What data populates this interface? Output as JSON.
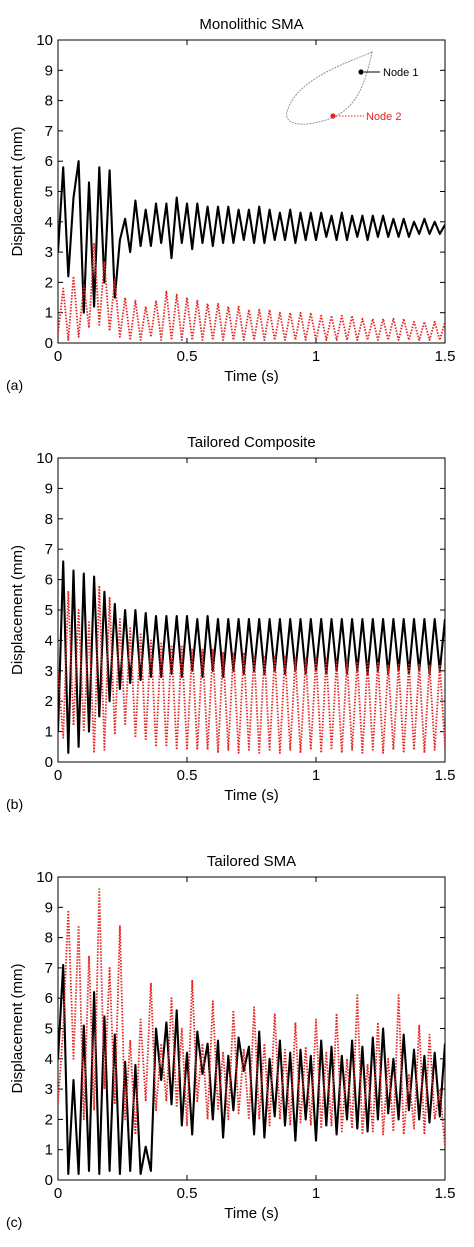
{
  "figure": {
    "colors": {
      "node1": "#000000",
      "node2": "#e8231f",
      "inset": "#888888"
    }
  },
  "chart_data": [
    {
      "type": "line",
      "panel_label": "(a)",
      "title": "Monolithic SMA",
      "xlabel": "Time (s)",
      "ylabel": "Displacement (mm)",
      "xlim": [
        0,
        1.5
      ],
      "ylim": [
        0,
        10
      ],
      "xticks": [
        "0",
        "0.5",
        "1",
        "1.5"
      ],
      "yticks": [
        "0",
        "1",
        "2",
        "3",
        "4",
        "5",
        "6",
        "7",
        "8",
        "9",
        "10"
      ],
      "legend": {
        "placement": "top-right",
        "entries": [
          "Node 1",
          "Node 2"
        ]
      },
      "series": [
        {
          "name": "Node 1",
          "color": "#000000",
          "style": "solid",
          "x": [
            0,
            0.02,
            0.04,
            0.06,
            0.08,
            0.1,
            0.12,
            0.14,
            0.16,
            0.18,
            0.2,
            0.22,
            0.24,
            0.26,
            0.28,
            0.3,
            0.32,
            0.34,
            0.36,
            0.38,
            0.4,
            0.42,
            0.44,
            0.46,
            0.48,
            0.5,
            0.52,
            0.54,
            0.56,
            0.58,
            0.6,
            0.62,
            0.64,
            0.66,
            0.68,
            0.7,
            0.72,
            0.74,
            0.76,
            0.78,
            0.8,
            0.82,
            0.84,
            0.86,
            0.88,
            0.9,
            0.92,
            0.94,
            0.96,
            0.98,
            1.0,
            1.02,
            1.04,
            1.06,
            1.08,
            1.1,
            1.12,
            1.14,
            1.16,
            1.18,
            1.2,
            1.22,
            1.24,
            1.26,
            1.28,
            1.3,
            1.32,
            1.34,
            1.36,
            1.38,
            1.4,
            1.42,
            1.44,
            1.46,
            1.48,
            1.5
          ],
          "y": [
            3.0,
            5.8,
            2.2,
            4.8,
            6.0,
            1.0,
            5.3,
            1.2,
            5.8,
            2.0,
            5.7,
            1.5,
            3.4,
            4.1,
            3.0,
            4.7,
            3.2,
            4.4,
            3.2,
            4.6,
            3.3,
            4.6,
            2.8,
            4.8,
            3.3,
            4.6,
            3.1,
            4.6,
            3.3,
            4.5,
            3.2,
            4.5,
            3.3,
            4.5,
            3.3,
            4.4,
            3.4,
            4.4,
            3.3,
            4.5,
            3.3,
            4.4,
            3.4,
            4.3,
            3.4,
            4.4,
            3.3,
            4.3,
            3.4,
            4.3,
            3.4,
            4.3,
            3.5,
            4.2,
            3.4,
            4.3,
            3.4,
            4.2,
            3.5,
            4.2,
            3.4,
            4.2,
            3.5,
            4.2,
            3.5,
            4.1,
            3.5,
            4.1,
            3.5,
            4.0,
            3.6,
            4.1,
            3.6,
            4.0,
            3.6,
            3.9
          ]
        },
        {
          "name": "Node 2",
          "color": "#e8231f",
          "style": "dotted",
          "x": [
            0,
            0.02,
            0.04,
            0.06,
            0.08,
            0.1,
            0.12,
            0.14,
            0.16,
            0.18,
            0.2,
            0.22,
            0.24,
            0.26,
            0.28,
            0.3,
            0.32,
            0.34,
            0.36,
            0.38,
            0.4,
            0.42,
            0.44,
            0.46,
            0.48,
            0.5,
            0.52,
            0.54,
            0.56,
            0.58,
            0.6,
            0.62,
            0.64,
            0.66,
            0.68,
            0.7,
            0.72,
            0.74,
            0.76,
            0.78,
            0.8,
            0.82,
            0.84,
            0.86,
            0.88,
            0.9,
            0.92,
            0.94,
            0.96,
            0.98,
            1.0,
            1.02,
            1.04,
            1.06,
            1.08,
            1.1,
            1.12,
            1.14,
            1.16,
            1.18,
            1.2,
            1.22,
            1.24,
            1.26,
            1.28,
            1.3,
            1.32,
            1.34,
            1.36,
            1.38,
            1.4,
            1.42,
            1.44,
            1.46,
            1.48,
            1.5
          ],
          "y": [
            0.3,
            1.8,
            0.1,
            2.2,
            0.2,
            1.9,
            0.5,
            3.3,
            0.6,
            2.7,
            0.4,
            2.1,
            0.2,
            1.5,
            0.1,
            1.4,
            0.1,
            1.2,
            0.2,
            1.4,
            0.1,
            1.7,
            0.1,
            1.6,
            0.1,
            1.5,
            0.1,
            1.4,
            0.1,
            1.3,
            0.1,
            1.3,
            0.1,
            1.2,
            0.1,
            1.2,
            0.1,
            1.1,
            0.1,
            1.1,
            0.1,
            1.1,
            0.1,
            1.0,
            0.1,
            1.0,
            0.1,
            1.0,
            0.1,
            1.0,
            0.1,
            0.9,
            0.1,
            0.9,
            0.1,
            0.9,
            0.1,
            0.9,
            0.1,
            0.8,
            0.1,
            0.8,
            0.1,
            0.8,
            0.1,
            0.8,
            0.1,
            0.8,
            0.1,
            0.7,
            0.1,
            0.7,
            0.1,
            0.7,
            0.1,
            0.7
          ]
        }
      ]
    },
    {
      "type": "line",
      "panel_label": "(b)",
      "title": "Tailored Composite",
      "xlabel": "Time (s)",
      "ylabel": "Displacement (mm)",
      "xlim": [
        0,
        1.5
      ],
      "ylim": [
        0,
        10
      ],
      "xticks": [
        "0",
        "0.5",
        "1",
        "1.5"
      ],
      "yticks": [
        "0",
        "1",
        "2",
        "3",
        "4",
        "5",
        "6",
        "7",
        "8",
        "9",
        "10"
      ],
      "series": [
        {
          "color": "#000000",
          "style": "solid",
          "x": [
            0,
            0.02,
            0.04,
            0.06,
            0.08,
            0.1,
            0.12,
            0.14,
            0.16,
            0.18,
            0.2,
            0.22,
            0.24,
            0.26,
            0.28,
            0.3,
            0.32,
            0.34,
            0.36,
            0.38,
            0.4,
            0.42,
            0.44,
            0.46,
            0.48,
            0.5,
            0.52,
            0.54,
            0.56,
            0.58,
            0.6,
            0.62,
            0.64,
            0.66,
            0.68,
            0.7,
            0.72,
            0.74,
            0.76,
            0.78,
            0.8,
            0.82,
            0.84,
            0.86,
            0.88,
            0.9,
            0.92,
            0.94,
            0.96,
            0.98,
            1.0,
            1.02,
            1.04,
            1.06,
            1.08,
            1.1,
            1.12,
            1.14,
            1.16,
            1.18,
            1.2,
            1.22,
            1.24,
            1.26,
            1.28,
            1.3,
            1.32,
            1.34,
            1.36,
            1.38,
            1.4,
            1.42,
            1.44,
            1.46,
            1.48,
            1.5
          ],
          "y": [
            1.0,
            6.6,
            0.3,
            6.3,
            0.5,
            6.2,
            1.0,
            6.1,
            1.5,
            5.6,
            2.0,
            5.2,
            2.4,
            5.0,
            2.6,
            5.0,
            2.7,
            4.9,
            2.8,
            4.8,
            2.8,
            4.8,
            2.9,
            4.8,
            2.8,
            4.8,
            3.0,
            4.7,
            2.8,
            4.8,
            3.0,
            4.7,
            2.8,
            4.7,
            3.0,
            4.7,
            2.9,
            4.7,
            3.0,
            4.7,
            2.9,
            4.7,
            3.0,
            4.7,
            2.9,
            4.7,
            3.0,
            4.7,
            2.9,
            4.7,
            3.0,
            4.7,
            2.9,
            4.7,
            3.0,
            4.7,
            2.9,
            4.7,
            3.0,
            4.7,
            2.9,
            4.7,
            3.0,
            4.7,
            2.9,
            4.7,
            3.0,
            4.7,
            2.9,
            4.7,
            3.0,
            4.7,
            2.9,
            4.7,
            3.0,
            4.7
          ]
        },
        {
          "color": "#e8231f",
          "style": "dotted",
          "x": [
            0,
            0.02,
            0.04,
            0.06,
            0.08,
            0.1,
            0.12,
            0.14,
            0.16,
            0.18,
            0.2,
            0.22,
            0.24,
            0.26,
            0.28,
            0.3,
            0.32,
            0.34,
            0.36,
            0.38,
            0.4,
            0.42,
            0.44,
            0.46,
            0.48,
            0.5,
            0.52,
            0.54,
            0.56,
            0.58,
            0.6,
            0.62,
            0.64,
            0.66,
            0.68,
            0.7,
            0.72,
            0.74,
            0.76,
            0.78,
            0.8,
            0.82,
            0.84,
            0.86,
            0.88,
            0.9,
            0.92,
            0.94,
            0.96,
            0.98,
            1.0,
            1.02,
            1.04,
            1.06,
            1.08,
            1.1,
            1.12,
            1.14,
            1.16,
            1.18,
            1.2,
            1.22,
            1.24,
            1.26,
            1.28,
            1.3,
            1.32,
            1.34,
            1.36,
            1.38,
            1.4,
            1.42,
            1.44,
            1.46,
            1.48,
            1.5
          ],
          "y": [
            3.0,
            0.8,
            5.6,
            1.2,
            5.0,
            1.0,
            4.6,
            0.3,
            5.8,
            0.4,
            5.4,
            0.9,
            4.7,
            1.2,
            4.4,
            0.8,
            4.2,
            0.7,
            4.0,
            0.5,
            3.9,
            0.5,
            3.8,
            0.4,
            3.8,
            0.4,
            3.7,
            0.4,
            3.7,
            0.4,
            3.7,
            0.3,
            3.6,
            0.4,
            3.6,
            0.3,
            3.6,
            0.4,
            3.5,
            0.3,
            3.5,
            0.4,
            3.5,
            0.3,
            3.5,
            0.4,
            3.4,
            0.3,
            3.4,
            0.4,
            3.4,
            0.3,
            3.4,
            0.4,
            3.3,
            0.3,
            3.3,
            0.4,
            3.3,
            0.3,
            3.3,
            0.4,
            3.3,
            0.3,
            3.2,
            0.4,
            3.2,
            0.3,
            3.2,
            0.4,
            3.2,
            0.3,
            3.2,
            0.4,
            3.2,
            0.5
          ]
        }
      ]
    },
    {
      "type": "line",
      "panel_label": "(c)",
      "title": "Tailored SMA",
      "xlabel": "Time (s)",
      "ylabel": "Displacement (mm)",
      "xlim": [
        0,
        1.5
      ],
      "ylim": [
        0,
        10
      ],
      "xticks": [
        "0",
        "0.5",
        "1",
        "1.5"
      ],
      "yticks": [
        "0",
        "1",
        "2",
        "3",
        "4",
        "5",
        "6",
        "7",
        "8",
        "9",
        "10"
      ],
      "series": [
        {
          "color": "#000000",
          "style": "solid",
          "x": [
            0,
            0.02,
            0.04,
            0.06,
            0.08,
            0.1,
            0.12,
            0.14,
            0.16,
            0.18,
            0.2,
            0.22,
            0.24,
            0.26,
            0.28,
            0.3,
            0.32,
            0.34,
            0.36,
            0.38,
            0.4,
            0.42,
            0.44,
            0.46,
            0.48,
            0.5,
            0.52,
            0.54,
            0.56,
            0.58,
            0.6,
            0.62,
            0.64,
            0.66,
            0.68,
            0.7,
            0.72,
            0.74,
            0.76,
            0.78,
            0.8,
            0.82,
            0.84,
            0.86,
            0.88,
            0.9,
            0.92,
            0.94,
            0.96,
            0.98,
            1.0,
            1.02,
            1.04,
            1.06,
            1.08,
            1.1,
            1.12,
            1.14,
            1.16,
            1.18,
            1.2,
            1.22,
            1.24,
            1.26,
            1.28,
            1.3,
            1.32,
            1.34,
            1.36,
            1.38,
            1.4,
            1.42,
            1.44,
            1.46,
            1.48,
            1.5
          ],
          "y": [
            4.0,
            7.1,
            0.2,
            3.3,
            0.2,
            5.1,
            0.3,
            6.2,
            0.2,
            5.4,
            0.3,
            4.8,
            0.2,
            3.9,
            0.3,
            3.8,
            0.2,
            1.1,
            0.3,
            5.0,
            3.3,
            5.2,
            2.5,
            5.6,
            1.8,
            4.2,
            1.5,
            4.9,
            3.5,
            4.5,
            2.0,
            4.6,
            1.4,
            4.1,
            2.3,
            4.7,
            3.6,
            4.4,
            1.5,
            4.9,
            1.4,
            4.0,
            2.1,
            4.6,
            1.8,
            4.2,
            1.3,
            4.3,
            2.0,
            4.1,
            1.3,
            4.6,
            1.8,
            4.4,
            1.5,
            4.1,
            2.0,
            4.6,
            1.7,
            4.4,
            1.6,
            4.7,
            2.0,
            5.0,
            2.2,
            4.0,
            2.0,
            4.8,
            2.3,
            4.3,
            2.0,
            4.1,
            1.9,
            4.2,
            2.1,
            4.5
          ]
        },
        {
          "color": "#e8231f",
          "style": "dotted",
          "x": [
            0,
            0.02,
            0.04,
            0.06,
            0.08,
            0.1,
            0.12,
            0.14,
            0.16,
            0.18,
            0.2,
            0.22,
            0.24,
            0.26,
            0.28,
            0.3,
            0.32,
            0.34,
            0.36,
            0.38,
            0.4,
            0.42,
            0.44,
            0.46,
            0.48,
            0.5,
            0.52,
            0.54,
            0.56,
            0.58,
            0.6,
            0.62,
            0.64,
            0.66,
            0.68,
            0.7,
            0.72,
            0.74,
            0.76,
            0.78,
            0.8,
            0.82,
            0.84,
            0.86,
            0.88,
            0.9,
            0.92,
            0.94,
            0.96,
            0.98,
            1.0,
            1.02,
            1.04,
            1.06,
            1.08,
            1.1,
            1.12,
            1.14,
            1.16,
            1.18,
            1.2,
            1.22,
            1.24,
            1.26,
            1.28,
            1.3,
            1.32,
            1.34,
            1.36,
            1.38,
            1.4,
            1.42,
            1.44,
            1.46,
            1.48,
            1.5
          ],
          "y": [
            2.5,
            5.0,
            8.9,
            4.0,
            8.4,
            2.0,
            7.4,
            2.3,
            9.6,
            3.0,
            7.0,
            2.5,
            8.4,
            2.0,
            4.6,
            1.5,
            5.3,
            2.6,
            6.5,
            2.3,
            4.5,
            2.6,
            6.0,
            2.4,
            5.0,
            1.8,
            6.6,
            2.6,
            4.5,
            2.0,
            5.9,
            2.3,
            4.2,
            2.0,
            5.6,
            2.2,
            4.3,
            2.0,
            5.7,
            2.0,
            4.5,
            1.8,
            5.5,
            2.0,
            4.3,
            1.8,
            5.2,
            1.9,
            4.4,
            1.8,
            5.3,
            1.7,
            4.2,
            1.8,
            5.5,
            1.6,
            4.0,
            1.7,
            6.1,
            1.5,
            3.8,
            1.6,
            5.2,
            1.5,
            4.0,
            1.6,
            6.1,
            1.5,
            3.5,
            1.7,
            5.1,
            1.5,
            4.8,
            2.0,
            3.0,
            1.1
          ]
        }
      ]
    }
  ]
}
